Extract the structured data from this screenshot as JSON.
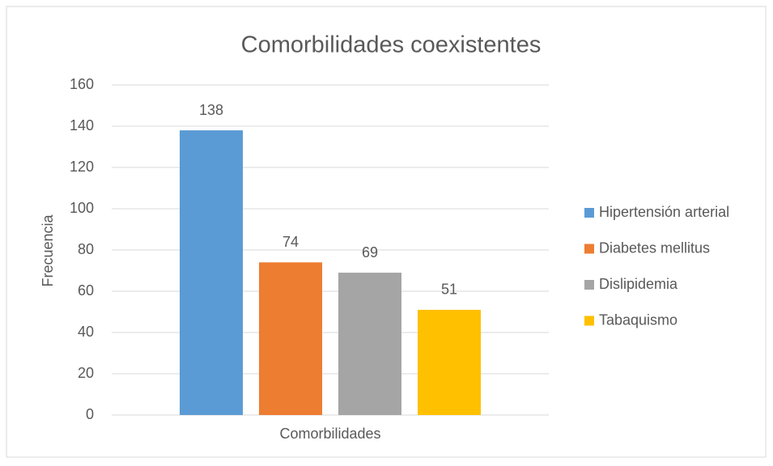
{
  "chart_data": {
    "type": "bar",
    "title": "Comorbilidades coexistentes",
    "ylabel": "Frecuencia",
    "categories": [
      "Comorbilidades"
    ],
    "series": [
      {
        "name": "Hipertensión arterial",
        "color": "#5b9bd5",
        "values": [
          138
        ]
      },
      {
        "name": "Diabetes mellitus",
        "color": "#ed7d31",
        "values": [
          74
        ]
      },
      {
        "name": "Dislipidemia",
        "color": "#a5a5a5",
        "values": [
          69
        ]
      },
      {
        "name": "Tabaquismo",
        "color": "#ffc000",
        "values": [
          51
        ]
      }
    ],
    "ylim": [
      0,
      160
    ],
    "yticks": [
      0,
      20,
      40,
      60,
      80,
      100,
      120,
      140,
      160
    ],
    "grid": true,
    "legend": "right"
  }
}
